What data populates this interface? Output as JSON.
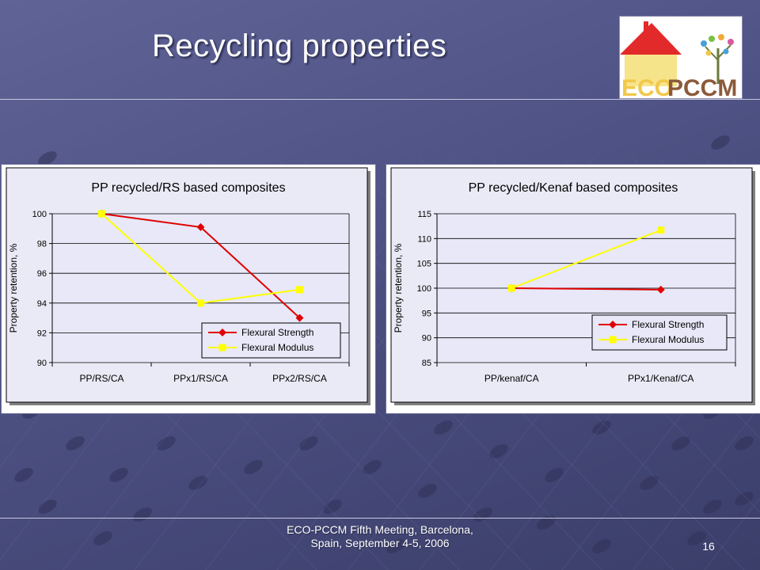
{
  "slide": {
    "title": "Recycling properties",
    "footer_line1": "ECO-PCCM Fifth Meeting, Barcelona,",
    "footer_line2": "Spain, September 4-5, 2006",
    "slide_number": "16"
  },
  "logo": {
    "text_eco": "ECO",
    "text_pccm": "PCCM"
  },
  "colors": {
    "flexural_strength": "#e00000",
    "flexural_modulus": "#ffff00",
    "plot_area": "#e8e8f8",
    "logo_eco": "#f2c84a",
    "logo_pccm": "#8b5a3a",
    "logo_roof": "#e32a2a"
  },
  "chart_data": [
    {
      "type": "line",
      "title": "PP recycled/RS based composites",
      "ylabel": "Property retention, %",
      "xlabel": "",
      "categories": [
        "PP/RS/CA",
        "PPx1/RS/CA",
        "PPx2/RS/CA"
      ],
      "ylim": [
        90,
        100
      ],
      "yticks": [
        90,
        92,
        94,
        96,
        98,
        100
      ],
      "ytick_labels": [
        "90",
        "92",
        "94",
        "96",
        "98",
        "100"
      ],
      "grid": true,
      "legend": "bottom-right",
      "series": [
        {
          "name": "Flexural Strength",
          "values": [
            100,
            99.1,
            93
          ],
          "color": "#e00000",
          "marker": "diamond"
        },
        {
          "name": "Flexural Modulus",
          "values": [
            100,
            94,
            94.9
          ],
          "color": "#ffff00",
          "marker": "square"
        }
      ]
    },
    {
      "type": "line",
      "title": "PP recycled/Kenaf based composites",
      "ylabel": "Property retention, %",
      "xlabel": "",
      "categories": [
        "PP/kenaf/CA",
        "PPx1/Kenaf/CA"
      ],
      "ylim": [
        85,
        115
      ],
      "yticks": [
        85,
        90,
        95,
        100,
        105,
        110,
        115
      ],
      "ytick_labels": [
        "85",
        "90",
        "95",
        "100",
        "105",
        "110",
        "115"
      ],
      "grid": true,
      "legend": "bottom-right",
      "series": [
        {
          "name": "Flexural Strength",
          "values": [
            100,
            99.7
          ],
          "color": "#e00000",
          "marker": "diamond"
        },
        {
          "name": "Flexural Modulus",
          "values": [
            100,
            111.7
          ],
          "color": "#ffff00",
          "marker": "square"
        }
      ]
    }
  ]
}
